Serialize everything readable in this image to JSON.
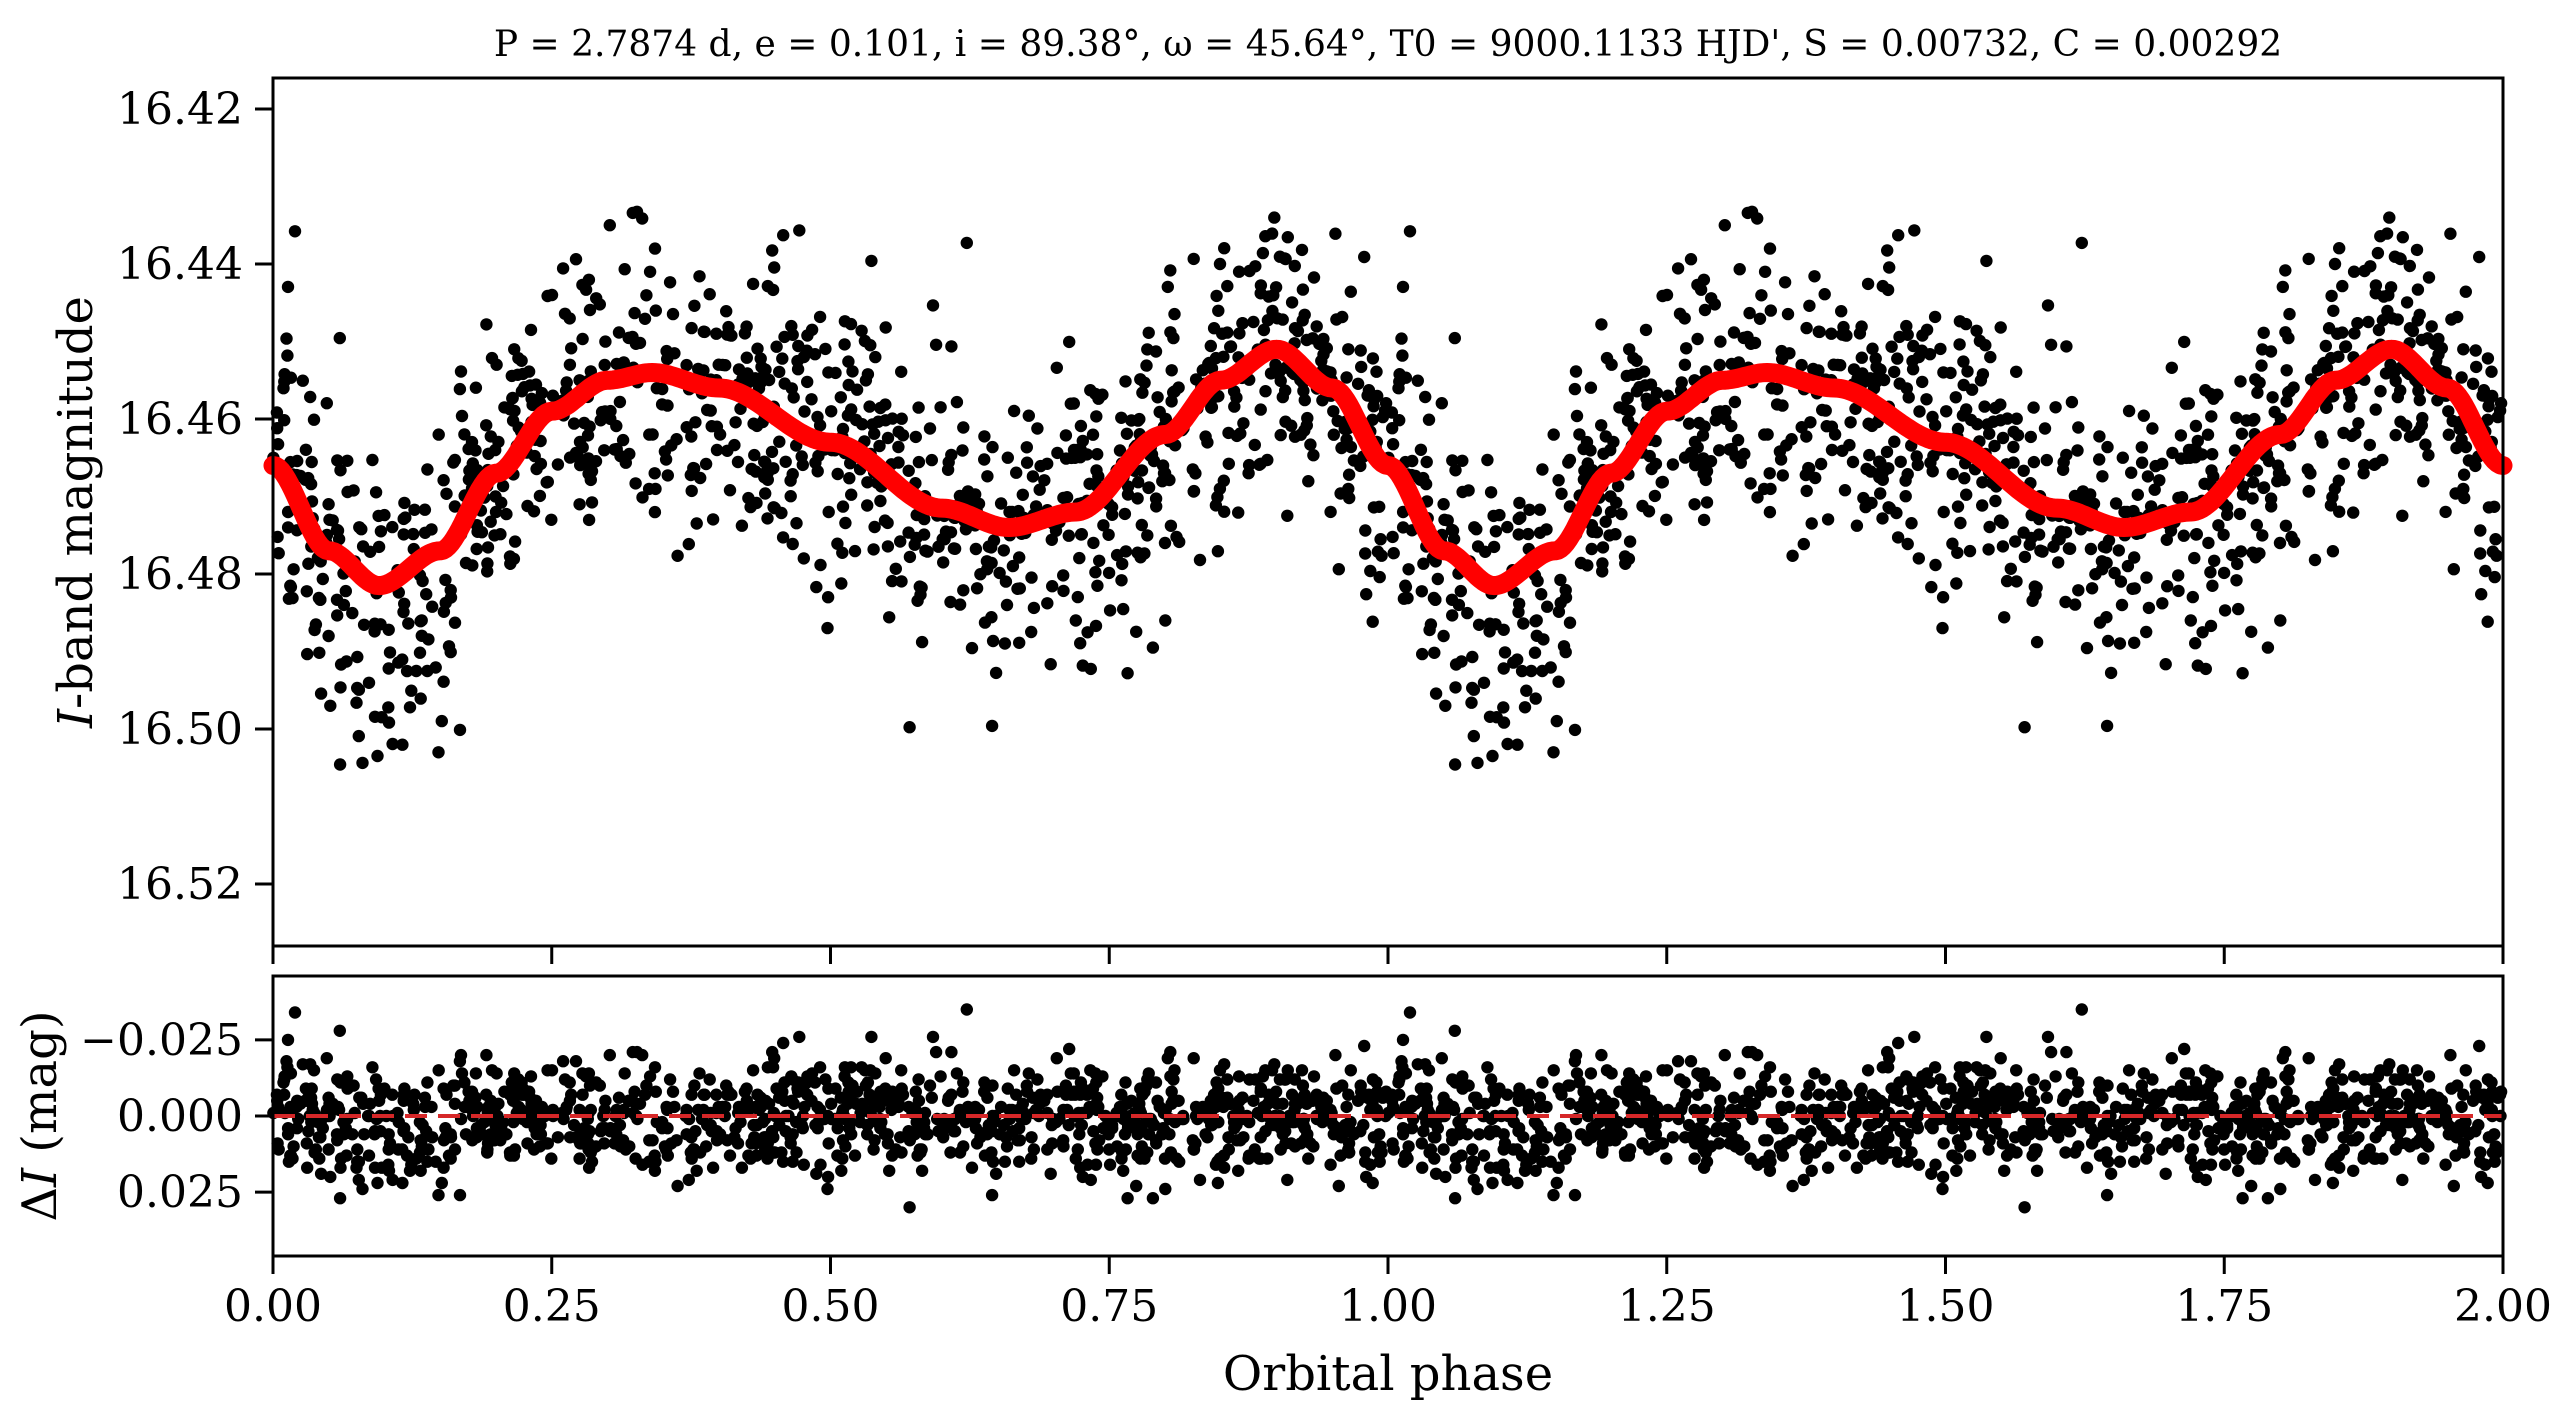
{
  "chart_data": [
    {
      "type": "scatter",
      "panel": "top",
      "title": "P = 2.7874 d, e = 0.101, i = 89.38°, ω = 45.64°, T0 = 9000.1133 HJD', S = 0.00732, C = 0.00292",
      "xlabel": "",
      "ylabel": "I-band magnitude",
      "xlim": [
        0,
        2
      ],
      "ylim": [
        16.528,
        16.416
      ],
      "y_inverted": true,
      "yticks": [
        16.42,
        16.44,
        16.46,
        16.48,
        16.5,
        16.52
      ],
      "ytick_labels": [
        "16.42",
        "16.44",
        "16.46",
        "16.48",
        "16.50",
        "16.52"
      ],
      "xticks": [
        0,
        0.25,
        0.5,
        0.75,
        1.0,
        1.25,
        1.5,
        1.75,
        2.0
      ],
      "series": [
        {
          "name": "Observed photometry",
          "kind": "points",
          "color": "#000000",
          "approx_count_per_phase_cycle": 1100,
          "noise_sigma_mag": 0.0095
        },
        {
          "name": "Eclipsing binary model",
          "kind": "line",
          "color": "#ff0000",
          "phase": [
            0.0,
            0.05,
            0.095,
            0.15,
            0.2,
            0.25,
            0.3,
            0.34,
            0.4,
            0.5,
            0.6,
            0.66,
            0.72,
            0.8,
            0.85,
            0.9,
            0.95,
            1.0
          ],
          "magnitude": [
            16.466,
            16.477,
            16.4815,
            16.477,
            16.467,
            16.459,
            16.455,
            16.454,
            16.456,
            16.463,
            16.4715,
            16.474,
            16.472,
            16.462,
            16.455,
            16.451,
            16.456,
            16.466
          ]
        }
      ]
    },
    {
      "type": "scatter",
      "panel": "bottom",
      "title": "",
      "xlabel": "Orbital phase",
      "ylabel": "ΔI (mag)",
      "xlim": [
        0,
        2
      ],
      "ylim": [
        0.046,
        -0.046
      ],
      "y_inverted": true,
      "yticks": [
        -0.025,
        0.0,
        0.025
      ],
      "ytick_labels": [
        "−0.025",
        "0.000",
        "0.025"
      ],
      "xticks": [
        0,
        0.25,
        0.5,
        0.75,
        1.0,
        1.25,
        1.5,
        1.75,
        2.0
      ],
      "xtick_labels": [
        "0.00",
        "0.25",
        "0.50",
        "0.75",
        "1.00",
        "1.25",
        "1.50",
        "1.75",
        "2.00"
      ],
      "series": [
        {
          "name": "Residuals",
          "kind": "points",
          "color": "#000000"
        },
        {
          "name": "Zero line",
          "kind": "dashed-line",
          "color": "#d62728",
          "y": 0.0
        }
      ]
    }
  ]
}
